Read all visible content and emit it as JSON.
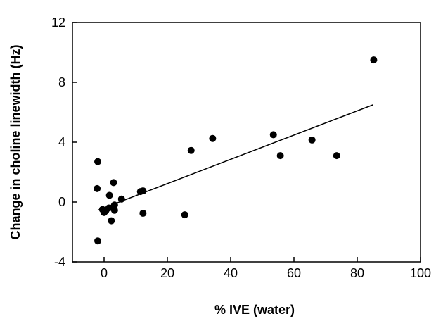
{
  "chart_data": {
    "type": "scatter",
    "title": "",
    "xlabel": "% IVE (water)",
    "ylabel": "Change in choline linewidth (Hz)",
    "xlim": [
      -10,
      100
    ],
    "ylim": [
      -4,
      12
    ],
    "xticks": [
      0,
      20,
      40,
      60,
      80,
      100
    ],
    "yticks": [
      -4,
      0,
      4,
      8,
      12
    ],
    "grid": false,
    "legend": "none",
    "series": [
      {
        "points": [
          {
            "x": -2,
            "y": 2.7
          },
          {
            "x": -2.2,
            "y": 0.9
          },
          {
            "x": -2,
            "y": -2.6
          },
          {
            "x": -0.5,
            "y": -0.5
          },
          {
            "x": 0,
            "y": -0.7
          },
          {
            "x": 0.5,
            "y": -0.6
          },
          {
            "x": 1.5,
            "y": -0.4
          },
          {
            "x": 1.7,
            "y": 0.45
          },
          {
            "x": 2.3,
            "y": -1.25
          },
          {
            "x": 3,
            "y": 1.3
          },
          {
            "x": 3.3,
            "y": -0.2
          },
          {
            "x": 3.3,
            "y": -0.55
          },
          {
            "x": 5.5,
            "y": 0.2
          },
          {
            "x": 11.5,
            "y": 0.7
          },
          {
            "x": 12.3,
            "y": 0.75
          },
          {
            "x": 12.3,
            "y": -0.75
          },
          {
            "x": 25.5,
            "y": -0.85
          },
          {
            "x": 27.5,
            "y": 3.45
          },
          {
            "x": 34.3,
            "y": 4.25
          },
          {
            "x": 53.5,
            "y": 4.5
          },
          {
            "x": 55.7,
            "y": 3.1
          },
          {
            "x": 65.7,
            "y": 4.15
          },
          {
            "x": 73.5,
            "y": 3.1
          },
          {
            "x": 85.2,
            "y": 9.5
          }
        ]
      }
    ],
    "trendline": {
      "x": [
        -2,
        85
      ],
      "y": [
        -0.55,
        6.5
      ]
    },
    "colors": {
      "marker": "#000000",
      "line": "#000000",
      "axis": "#000000"
    }
  }
}
